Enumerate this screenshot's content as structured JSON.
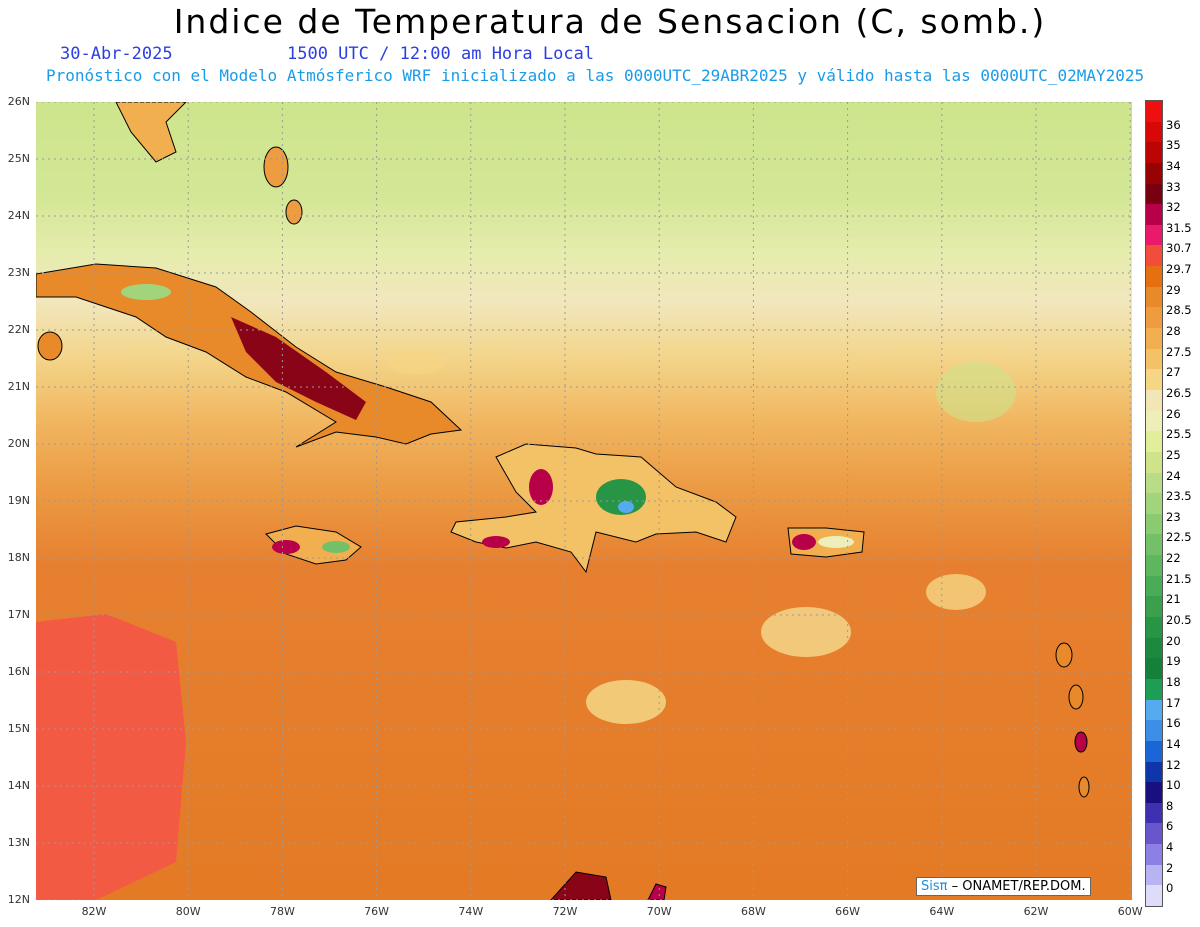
{
  "header": {
    "title": "Indice de Temperatura de Sensacion (C, somb.)",
    "date": "30-Abr-2025",
    "time": "1500 UTC / 12:00 am Hora Local",
    "model_line": "Pronóstico con el Modelo Atmósferico WRF inicializado a las 0000UTC_29ABR2025 y válido hasta las  0000UTC_02MAY2025"
  },
  "axes": {
    "lat_labels": [
      "26N",
      "25N",
      "24N",
      "23N",
      "22N",
      "21N",
      "20N",
      "19N",
      "18N",
      "17N",
      "16N",
      "15N",
      "14N",
      "13N",
      "12N"
    ],
    "lon_labels": [
      "82W",
      "80W",
      "78W",
      "76W",
      "74W",
      "72W",
      "70W",
      "68W",
      "66W",
      "64W",
      "62W",
      "60W"
    ]
  },
  "colorbar": {
    "labels": [
      "36",
      "35",
      "34",
      "33",
      "32",
      "31.5",
      "30.7",
      "29.7",
      "29",
      "28.5",
      "28",
      "27.5",
      "27",
      "26.5",
      "26",
      "25.5",
      "25",
      "24",
      "23.5",
      "23",
      "22.5",
      "22",
      "21.5",
      "21",
      "20.5",
      "20",
      "19",
      "18",
      "17",
      "16",
      "14",
      "12",
      "10",
      "8",
      "6",
      "4",
      "2",
      "0"
    ],
    "colors": [
      "#ee1010",
      "#d80808",
      "#bb0404",
      "#990202",
      "#780010",
      "#b80048",
      "#ea1a6a",
      "#f24c3c",
      "#e57010",
      "#e98a2a",
      "#ee9c40",
      "#f2af50",
      "#f4c266",
      "#f5d685",
      "#f3e6b6",
      "#eeeeb8",
      "#e3ee9c",
      "#cfe38a",
      "#b9dc86",
      "#a2d47c",
      "#8acb72",
      "#73c069",
      "#5eb65e",
      "#4aac56",
      "#3aa04e",
      "#289446",
      "#1b8a3f",
      "#14803a",
      "#1e9e55",
      "#55aaf0",
      "#3d8ee6",
      "#1a66d6",
      "#0e35aa",
      "#1a0f80",
      "#3e30b0",
      "#6a56cc",
      "#8c80e6",
      "#b8b4f4",
      "#ddddfa"
    ]
  },
  "credit": {
    "brand": "Sisπ",
    "text": " – ONAMET/REP.DOM."
  }
}
